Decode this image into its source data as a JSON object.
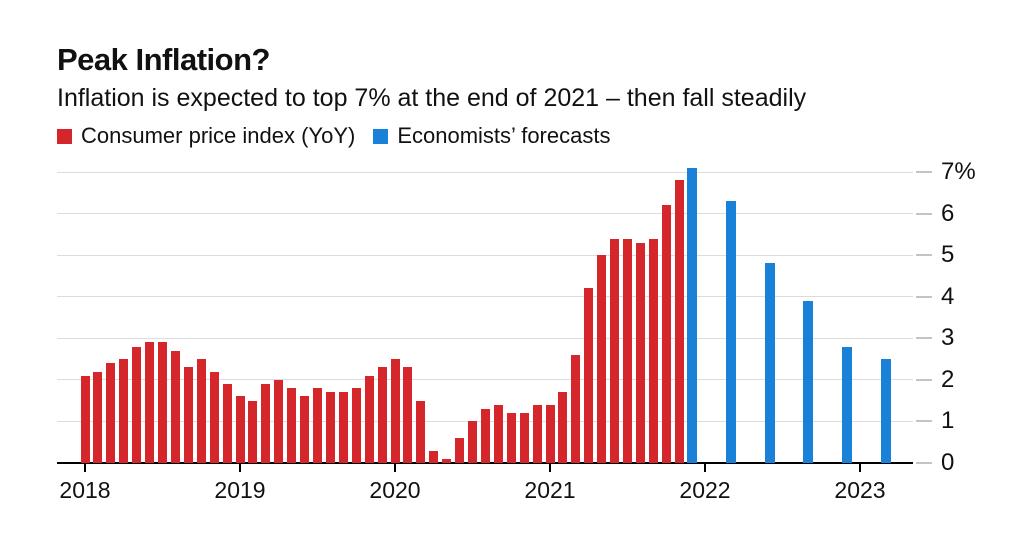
{
  "header": {
    "title": "Peak Inflation?",
    "subtitle": "Inflation is expected to top 7% at the end of 2021 – then fall steadily"
  },
  "legend": {
    "items": [
      {
        "label": "Consumer price index (YoY)",
        "color": "#d4262b"
      },
      {
        "label": "Economists’ forecasts",
        "color": "#1a81d8"
      }
    ]
  },
  "chart_data": {
    "type": "bar",
    "unit": "%",
    "grid": true,
    "legend_position": "top",
    "ylim": [
      0,
      7.3
    ],
    "yticks": [
      0,
      1,
      2,
      3,
      4,
      5,
      6,
      7
    ],
    "ytick_top_label": "7%",
    "xtick_years": [
      "2018",
      "2019",
      "2020",
      "2021",
      "2022",
      "2023"
    ],
    "series": [
      {
        "name": "Consumer price index (YoY)",
        "color": "#d4262b",
        "frequency": "monthly",
        "start_month": "2018-01",
        "values": [
          2.1,
          2.2,
          2.4,
          2.5,
          2.8,
          2.9,
          2.9,
          2.7,
          2.3,
          2.5,
          2.2,
          1.9,
          1.6,
          1.5,
          1.9,
          2.0,
          1.8,
          1.6,
          1.8,
          1.7,
          1.7,
          1.8,
          2.1,
          2.3,
          2.5,
          2.3,
          1.5,
          0.3,
          0.1,
          0.6,
          1.0,
          1.3,
          1.4,
          1.2,
          1.2,
          1.4,
          1.4,
          1.7,
          2.6,
          4.2,
          5.0,
          5.4,
          5.4,
          5.3,
          5.4,
          6.2,
          6.8
        ]
      },
      {
        "name": "Economists’ forecasts",
        "color": "#1a81d8",
        "frequency": "quarterly",
        "points": [
          {
            "month": "2021-12",
            "value": 7.1
          },
          {
            "month": "2022-03",
            "value": 6.3
          },
          {
            "month": "2022-06",
            "value": 4.8
          },
          {
            "month": "2022-09",
            "value": 3.9
          },
          {
            "month": "2022-12",
            "value": 2.8
          },
          {
            "month": "2023-03",
            "value": 2.5
          }
        ]
      }
    ]
  }
}
